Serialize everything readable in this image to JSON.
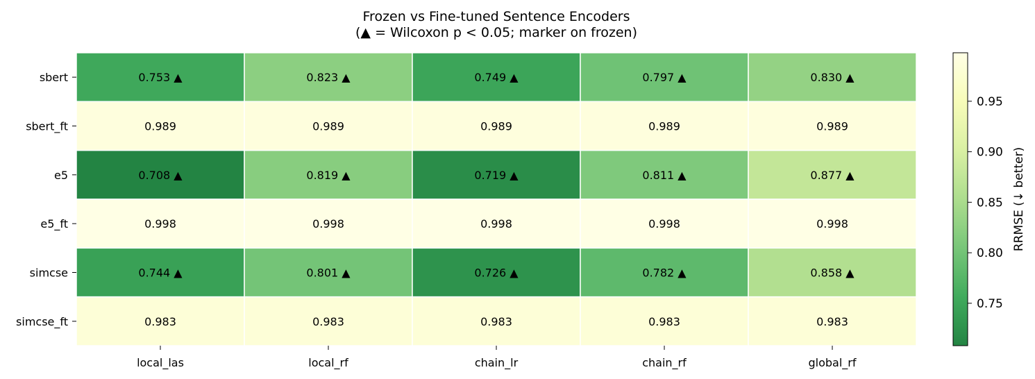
{
  "chart_data": {
    "type": "heatmap",
    "title": "Frozen vs Fine-tuned Sentence Encoders",
    "subtitle": "(▲ = Wilcoxon p < 0.05; marker on frozen)",
    "xlabel": "",
    "ylabel": "",
    "x_categories": [
      "local_las",
      "local_rf",
      "chain_lr",
      "chain_rf",
      "global_rf"
    ],
    "y_categories": [
      "sbert",
      "sbert_ft",
      "e5",
      "e5_ft",
      "simcse",
      "simcse_ft"
    ],
    "values": [
      [
        0.753,
        0.823,
        0.749,
        0.797,
        0.83
      ],
      [
        0.989,
        0.989,
        0.989,
        0.989,
        0.989
      ],
      [
        0.708,
        0.819,
        0.719,
        0.811,
        0.877
      ],
      [
        0.998,
        0.998,
        0.998,
        0.998,
        0.998
      ],
      [
        0.744,
        0.801,
        0.726,
        0.782,
        0.858
      ],
      [
        0.983,
        0.983,
        0.983,
        0.983,
        0.983
      ]
    ],
    "significant": [
      [
        true,
        true,
        true,
        true,
        true
      ],
      [
        false,
        false,
        false,
        false,
        false
      ],
      [
        true,
        true,
        true,
        true,
        true
      ],
      [
        false,
        false,
        false,
        false,
        false
      ],
      [
        true,
        true,
        true,
        true,
        true
      ],
      [
        false,
        false,
        false,
        false,
        false
      ]
    ],
    "marker": "▲",
    "cell_labels": [
      [
        "0.753 ▲",
        "0.823 ▲",
        "0.749 ▲",
        "0.797 ▲",
        "0.830 ▲"
      ],
      [
        "0.989",
        "0.989",
        "0.989",
        "0.989",
        "0.989"
      ],
      [
        "0.708 ▲",
        "0.819 ▲",
        "0.719 ▲",
        "0.811 ▲",
        "0.877 ▲"
      ],
      [
        "0.998",
        "0.998",
        "0.998",
        "0.998",
        "0.998"
      ],
      [
        "0.744 ▲",
        "0.801 ▲",
        "0.726 ▲",
        "0.782 ▲",
        "0.858 ▲"
      ],
      [
        "0.983",
        "0.983",
        "0.983",
        "0.983",
        "0.983"
      ]
    ],
    "colorbar": {
      "label": "RRMSE (↓ better)",
      "range": [
        0.708,
        0.998
      ],
      "ticks": [
        0.75,
        0.8,
        0.85,
        0.9,
        0.95
      ],
      "tick_labels": [
        "0.75",
        "0.80",
        "0.85",
        "0.90",
        "0.95"
      ],
      "colormap": "YlGn_r",
      "placement": "right"
    },
    "colors": [
      "#ffffe5",
      "#f7fcb9",
      "#d9f0a3",
      "#addd8e",
      "#78c679",
      "#41ab5d",
      "#238443"
    ],
    "grid": false
  }
}
